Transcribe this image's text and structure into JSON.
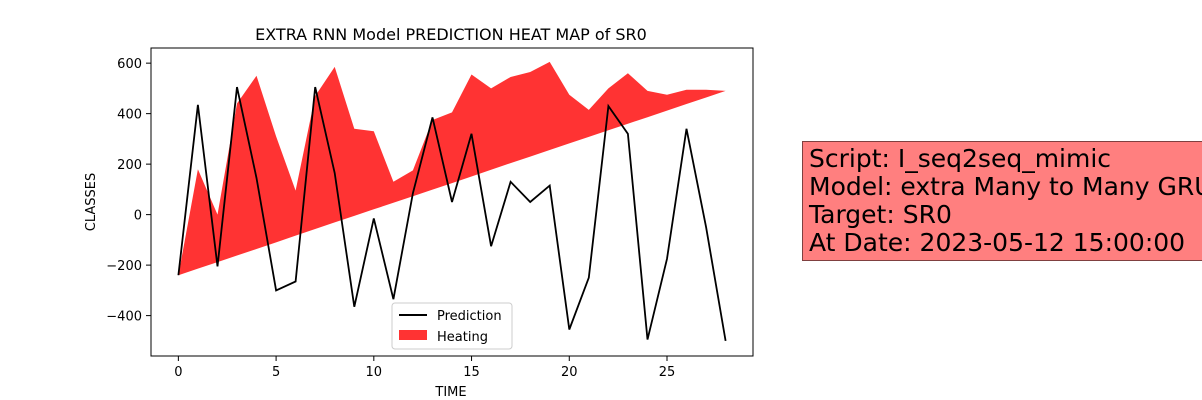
{
  "chart_data": {
    "type": "line",
    "title": "EXTRA RNN Model PREDICTION HEAT MAP of SR0",
    "xlabel": "TIME",
    "ylabel": "CLASSES",
    "xlim": [
      -1.4,
      29.4
    ],
    "ylim": [
      -560,
      660
    ],
    "xticks": [
      0,
      5,
      10,
      15,
      20,
      25
    ],
    "yticks": [
      -400,
      -200,
      0,
      200,
      400,
      600
    ],
    "x": [
      0,
      1,
      2,
      3,
      4,
      5,
      6,
      7,
      8,
      9,
      10,
      11,
      12,
      13,
      14,
      15,
      16,
      17,
      18,
      19,
      20,
      21,
      22,
      23,
      24,
      25,
      26,
      27,
      28
    ],
    "series": [
      {
        "name": "Prediction",
        "type": "line",
        "color": "#000000",
        "values": [
          -240,
          435,
          -205,
          505,
          145,
          -300,
          -265,
          505,
          165,
          -365,
          -15,
          -335,
          85,
          385,
          50,
          320,
          -125,
          130,
          50,
          115,
          -455,
          -250,
          430,
          320,
          -495,
          -175,
          340,
          -50,
          -500
        ]
      },
      {
        "name": "Heating",
        "type": "area",
        "color": "#ff0000",
        "values_upper": [
          -240,
          180,
          0,
          440,
          550,
          310,
          95,
          470,
          585,
          340,
          330,
          130,
          175,
          375,
          405,
          555,
          500,
          545,
          565,
          605,
          475,
          415,
          500,
          560,
          490,
          475,
          495,
          495,
          490
        ],
        "values_lower": [
          -240,
          -214,
          -188,
          -162,
          -136,
          -110,
          -83,
          -57,
          -31,
          -5,
          21,
          47,
          73,
          99,
          125,
          151,
          178,
          204,
          230,
          256,
          282,
          308,
          334,
          360,
          386,
          412,
          438,
          464,
          490
        ]
      }
    ],
    "legend_position": "lower-center",
    "grid": false
  },
  "info_box": {
    "lines": [
      "Script: I_seq2seq_mimic",
      "Model: extra Many to Many GRU",
      "Target: SR0",
      "At Date: 2023-05-12 15:00:00"
    ],
    "background": "#ff7f7f"
  }
}
